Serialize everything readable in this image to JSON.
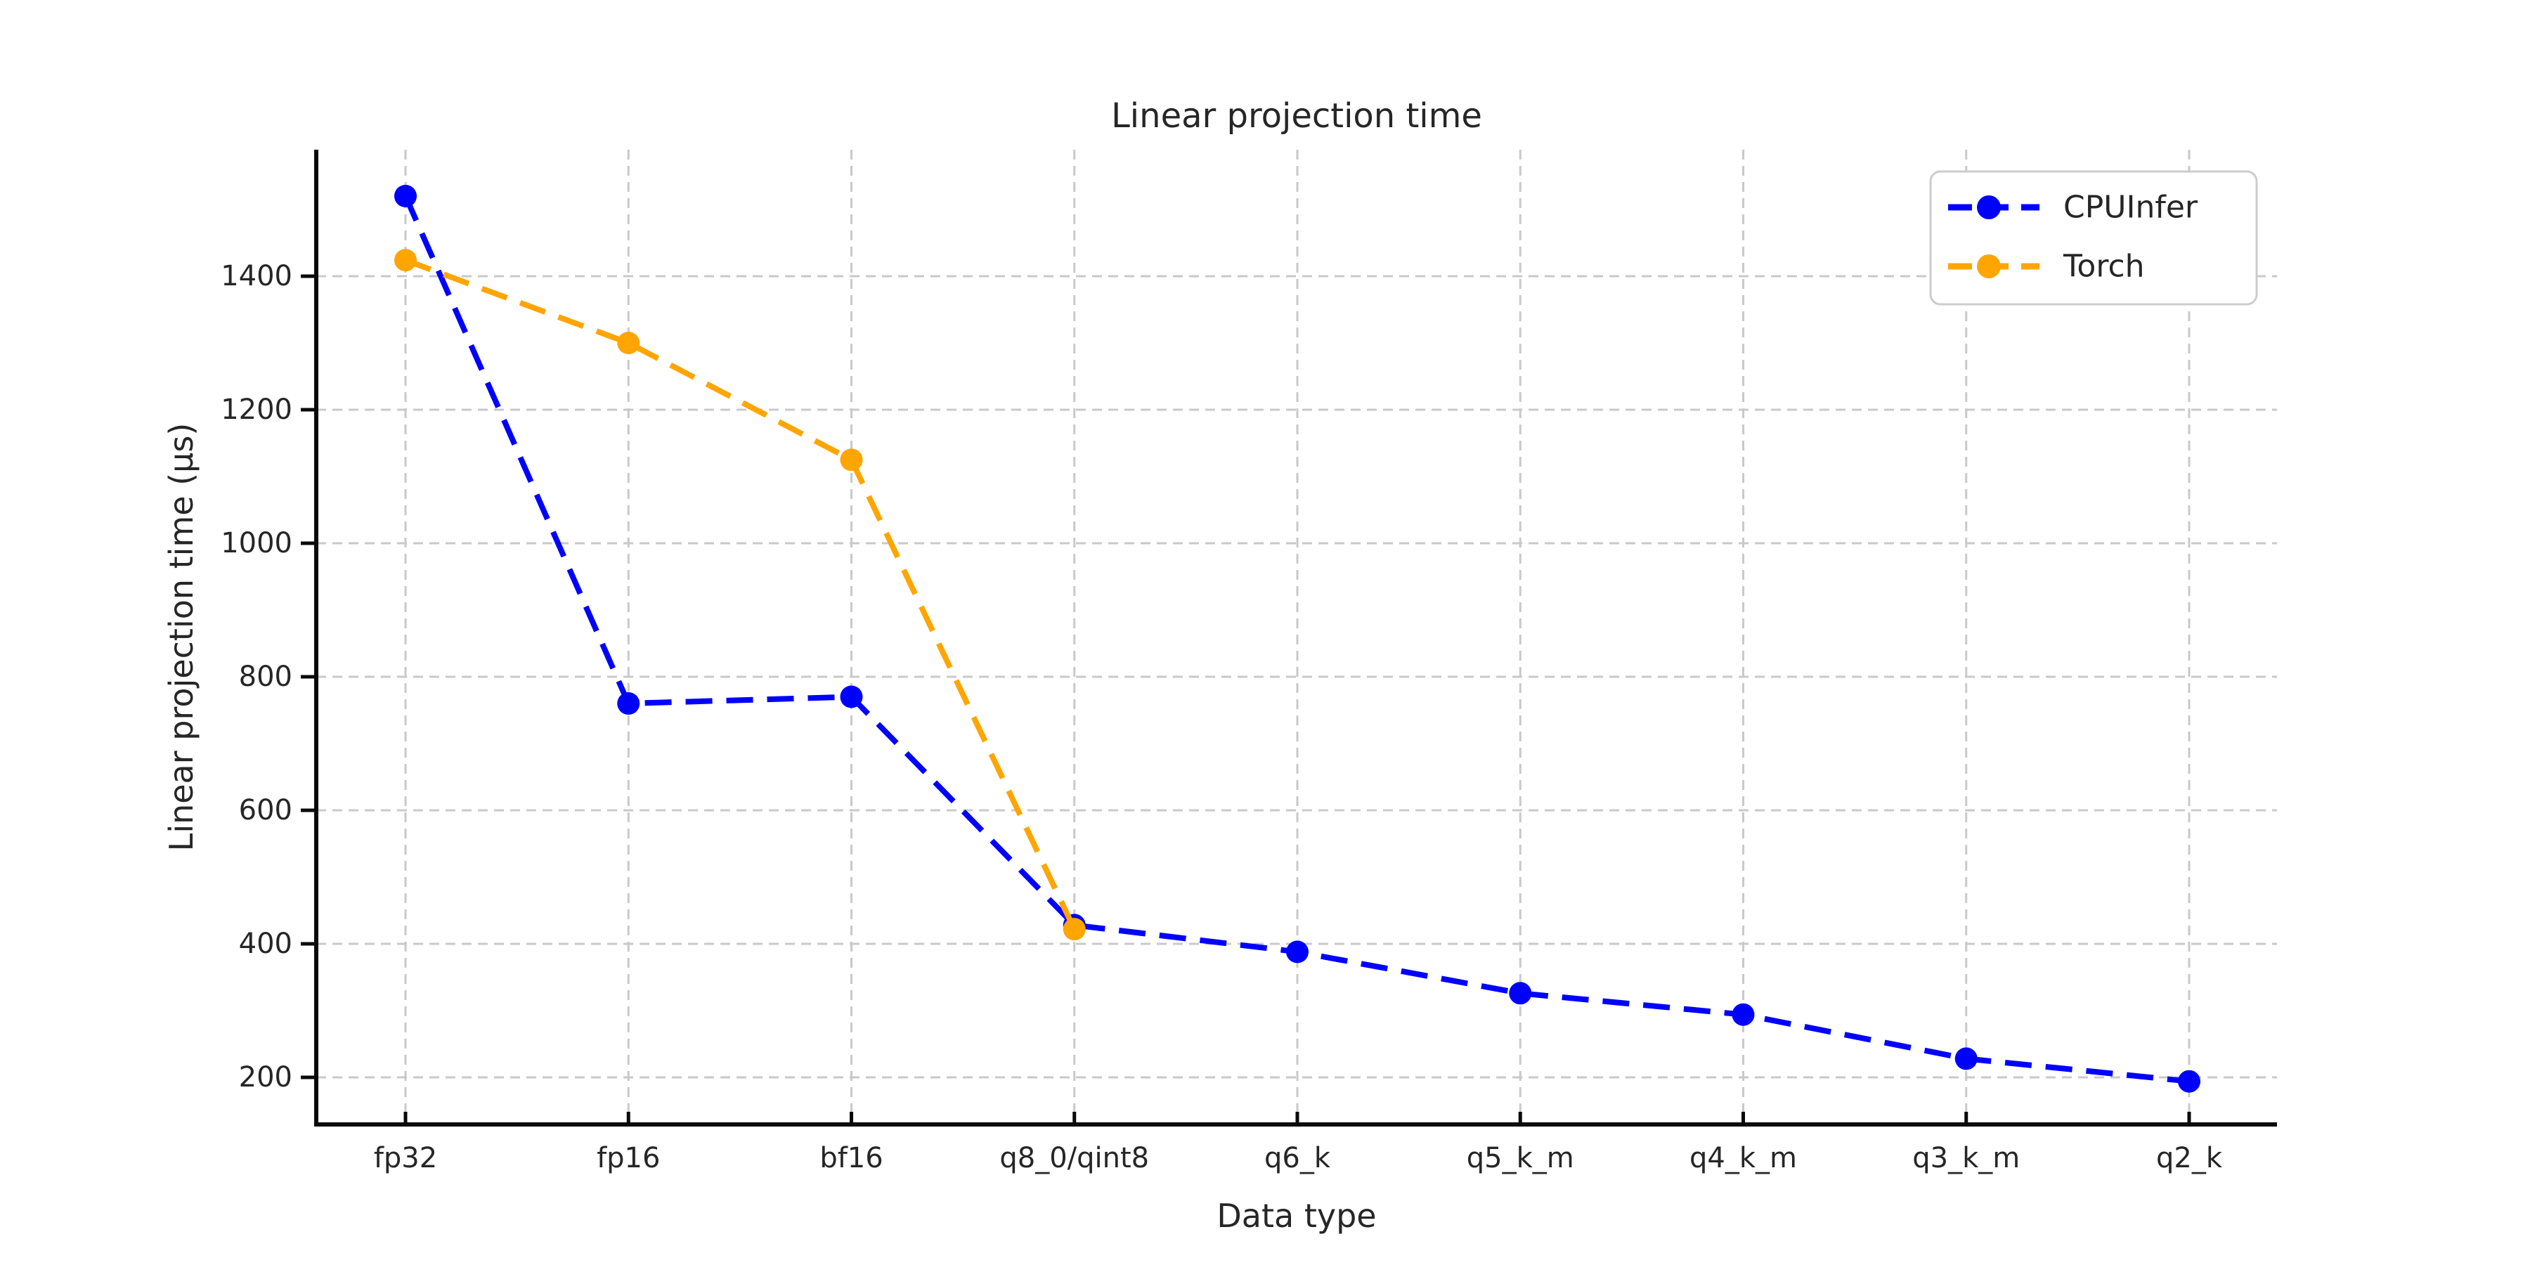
{
  "figure": {
    "background": "#ffffff",
    "text_color": "#262626",
    "spine_color": "#0a0a0a",
    "grid_color": "#c9c9c9",
    "legend_border_color": "#cccccc"
  },
  "chart_data": {
    "type": "line",
    "title": "Linear projection time",
    "xlabel": "Data type",
    "ylabel": "Linear projection time (μs)",
    "categories": [
      "fp32",
      "fp16",
      "bf16",
      "q8_0/qint8",
      "q6_k",
      "q5_k_m",
      "q4_k_m",
      "q3_k_m",
      "q2_k"
    ],
    "series": [
      {
        "name": "CPUInfer",
        "color": "#0000ff",
        "linestyle": "dashed",
        "marker": "circle",
        "values": [
          1520,
          760,
          770,
          428,
          388,
          326,
          294,
          228,
          194
        ]
      },
      {
        "name": "Torch",
        "color": "#ffa500",
        "linestyle": "dashed",
        "marker": "circle",
        "values": [
          1424,
          1300,
          1125,
          422,
          null,
          null,
          null,
          null,
          null
        ]
      }
    ],
    "yticks": [
      200,
      400,
      600,
      800,
      1000,
      1200,
      1400
    ],
    "ylim": [
      130,
      1590
    ],
    "grid": "dashed",
    "legend": {
      "position": "top-right",
      "entries": [
        "CPUInfer",
        "Torch"
      ]
    }
  }
}
